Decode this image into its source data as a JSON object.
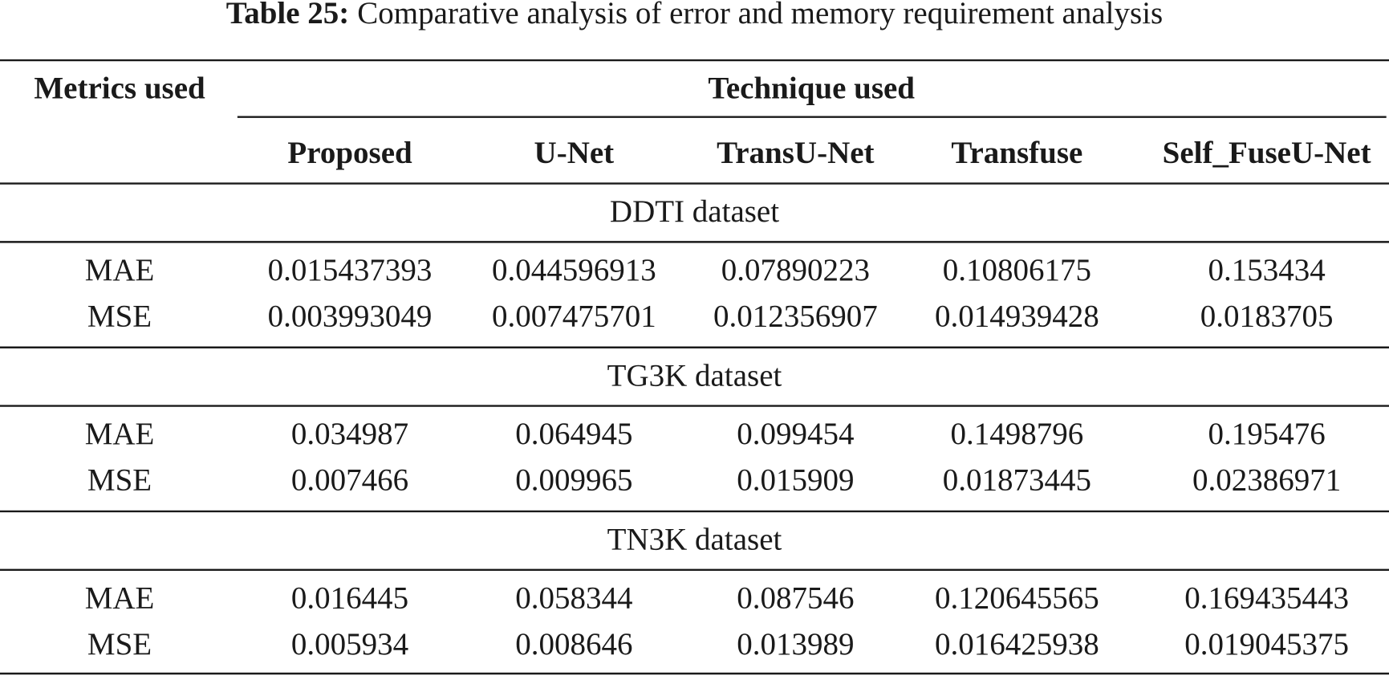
{
  "caption": {
    "label": "Table 25:",
    "text": "Comparative analysis of error and memory requirement analysis"
  },
  "header": {
    "metrics": "Metrics used",
    "technique": "Technique used",
    "columns": [
      "Proposed",
      "U-Net",
      "TransU-Net",
      "Transfuse",
      "Self_FuseU-Net"
    ]
  },
  "sections": [
    {
      "title": "DDTI dataset",
      "rows": [
        [
          "MAE",
          "0.015437393",
          "0.044596913",
          "0.07890223",
          "0.10806175",
          "0.153434"
        ],
        [
          "MSE",
          "0.003993049",
          "0.007475701",
          "0.012356907",
          "0.014939428",
          "0.0183705"
        ]
      ]
    },
    {
      "title": "TG3K dataset",
      "rows": [
        [
          "MAE",
          "0.034987",
          "0.064945",
          "0.099454",
          "0.1498796",
          "0.195476"
        ],
        [
          "MSE",
          "0.007466",
          "0.009965",
          "0.015909",
          "0.01873445",
          "0.02386971"
        ]
      ]
    },
    {
      "title": "TN3K dataset",
      "rows": [
        [
          "MAE",
          "0.016445",
          "0.058344",
          "0.087546",
          "0.120645565",
          "0.169435443"
        ],
        [
          "MSE",
          "0.005934",
          "0.008646",
          "0.013989",
          "0.016425938",
          "0.019045375"
        ]
      ]
    }
  ]
}
